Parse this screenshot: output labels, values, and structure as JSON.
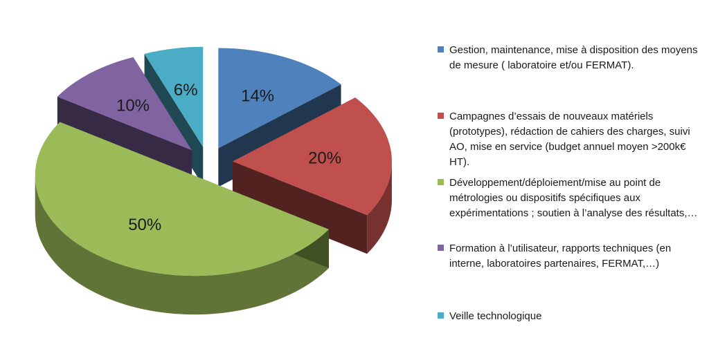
{
  "chart_data": {
    "type": "pie",
    "variant": "3d-exploded",
    "title": "",
    "slices": [
      {
        "label": "Gestion, maintenance, mise à disposition des moyens de mesure ( laboratoire et/ou FERMAT).",
        "value": 14,
        "display": "14%",
        "color": "#4f81bd"
      },
      {
        "label": "Campagnes d’essais de nouveaux matériels (prototypes), rédaction de cahiers des charges, suivi  AO, mise en service (budget annuel moyen >200k€ HT).",
        "value": 20,
        "display": "20%",
        "color": "#c0504d"
      },
      {
        "label": "Développement/déploiement/mise au point de métrologies ou dispositifs  spécifiques aux expérimentations ; soutien à l’analyse des résultats,…",
        "value": 50,
        "display": "50%",
        "color": "#9bbb59"
      },
      {
        "label": "Formation à l’utilisateur, rapports techniques (en interne, laboratoires partenaires, FERMAT,…)",
        "value": 10,
        "display": "10%",
        "color": "#8064a2"
      },
      {
        "label": "Veille technologique",
        "value": 6,
        "display": "6%",
        "color": "#4bacc6"
      }
    ],
    "legend_position": "right"
  }
}
